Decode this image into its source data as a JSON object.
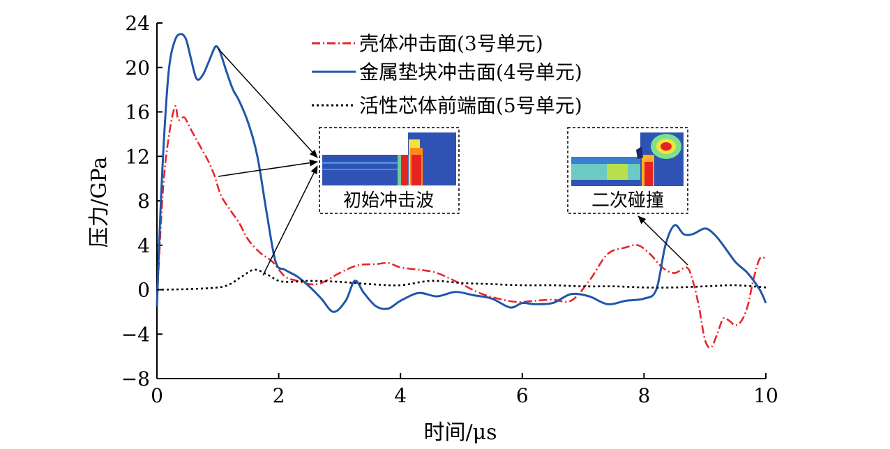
{
  "chart_data": {
    "type": "line",
    "xlabel": "时间/μs",
    "ylabel": "压力/GPa",
    "xlim": [
      0,
      10
    ],
    "ylim": [
      -8,
      24
    ],
    "xticks": [
      0,
      2,
      4,
      6,
      8,
      10
    ],
    "yticks": [
      -8,
      -4,
      0,
      4,
      8,
      12,
      16,
      20,
      24
    ],
    "grid": false,
    "legend_position": "top-center",
    "series": [
      {
        "name": "壳体冲击面(3号单元)",
        "color": "#e8262a",
        "style": "dashdot",
        "x": [
          0,
          0.1,
          0.2,
          0.3,
          0.35,
          0.45,
          0.55,
          0.65,
          0.75,
          0.85,
          0.95,
          1.05,
          1.2,
          1.35,
          1.5,
          1.7,
          1.9,
          2.1,
          2.3,
          2.5,
          2.7,
          3.0,
          3.3,
          3.6,
          3.8,
          4.0,
          4.3,
          4.6,
          5.0,
          5.3,
          5.6,
          5.9,
          6.2,
          6.5,
          6.8,
          7.1,
          7.4,
          7.7,
          7.9,
          8.1,
          8.3,
          8.5,
          8.7,
          8.8,
          8.9,
          9.0,
          9.1,
          9.2,
          9.3,
          9.4,
          9.5,
          9.6,
          9.7,
          9.8,
          9.9,
          10.0
        ],
        "y": [
          -1,
          9,
          14,
          16.5,
          15.3,
          15.5,
          14.5,
          13.5,
          12.5,
          11.5,
          10.2,
          8.5,
          7.2,
          6.0,
          4.5,
          3.3,
          2.5,
          1.2,
          0.8,
          0.5,
          0.6,
          1.5,
          2.2,
          2.3,
          2.4,
          2.0,
          1.8,
          1.5,
          0.5,
          -0.3,
          -0.8,
          -1.1,
          -1.0,
          -0.9,
          -1.0,
          0.8,
          3.2,
          3.8,
          4.0,
          3.2,
          2.0,
          1.5,
          2.0,
          0.8,
          -1.5,
          -4.5,
          -5.2,
          -4.0,
          -2.6,
          -2.8,
          -3.2,
          -2.8,
          -1.5,
          1.0,
          2.8,
          2.8
        ]
      },
      {
        "name": "金属垫块冲击面(4号单元)",
        "color": "#1f56a8",
        "style": "solid",
        "x": [
          0,
          0.05,
          0.12,
          0.2,
          0.3,
          0.4,
          0.48,
          0.55,
          0.65,
          0.75,
          0.85,
          0.95,
          1.0,
          1.05,
          1.15,
          1.25,
          1.35,
          1.5,
          1.65,
          1.8,
          1.95,
          2.1,
          2.3,
          2.5,
          2.7,
          2.9,
          3.1,
          3.25,
          3.4,
          3.6,
          3.8,
          4.0,
          4.3,
          4.6,
          4.9,
          5.2,
          5.5,
          5.8,
          6.0,
          6.2,
          6.5,
          6.8,
          7.1,
          7.4,
          7.7,
          8.0,
          8.2,
          8.35,
          8.5,
          8.65,
          8.8,
          9.0,
          9.15,
          9.3,
          9.5,
          9.7,
          9.9,
          10.0
        ],
        "y": [
          -1.5,
          6,
          14,
          20,
          22.5,
          23,
          22.5,
          21,
          19,
          19.3,
          20.5,
          21.8,
          21.8,
          21.2,
          19.5,
          18,
          17,
          15,
          12,
          7,
          2.5,
          1.8,
          1.2,
          0.3,
          -0.8,
          -2.0,
          -1.0,
          0.8,
          -0.3,
          -1.5,
          -1.7,
          -1.0,
          -0.3,
          -0.6,
          -0.2,
          -0.5,
          -0.8,
          -1.6,
          -1.2,
          -1.3,
          -1.2,
          -0.4,
          -0.6,
          -1.3,
          -1.0,
          -0.8,
          0,
          4.0,
          5.8,
          5.0,
          5.0,
          5.5,
          5.0,
          4.0,
          2.5,
          1.5,
          0,
          -1.2
        ]
      },
      {
        "name": "活性芯体前端面(5号单元)",
        "color": "#000000",
        "style": "dotted",
        "x": [
          0,
          0.5,
          1.0,
          1.2,
          1.4,
          1.6,
          1.8,
          2.0,
          2.2,
          2.5,
          3.0,
          3.5,
          4.0,
          4.5,
          5.0,
          5.5,
          6.0,
          6.5,
          7.0,
          7.5,
          8.0,
          8.5,
          9.0,
          9.5,
          10.0
        ],
        "y": [
          0,
          0.05,
          0.2,
          0.5,
          1.2,
          1.8,
          1.4,
          0.8,
          0.7,
          0.8,
          0.7,
          0.5,
          0.4,
          0.8,
          0.6,
          0.5,
          0.4,
          0.4,
          0.3,
          0.3,
          0.2,
          0.2,
          0.3,
          0.4,
          0.2
        ]
      }
    ],
    "annotations": [
      {
        "label": "初始冲击波"
      },
      {
        "label": "二次碰撞"
      }
    ]
  }
}
